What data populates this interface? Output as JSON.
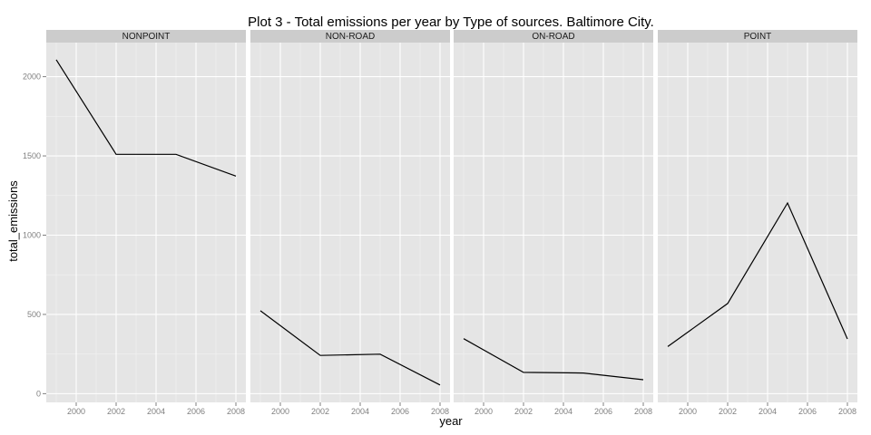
{
  "chart_data": {
    "type": "line",
    "title": "Plot 3 - Total emissions per year by Type of sources. Baltimore City.",
    "xlabel": "year",
    "ylabel": "total_emissions",
    "xlim": [
      1998.5,
      2008.5
    ],
    "ylim": [
      -55,
      2215
    ],
    "x_ticks": [
      2000,
      2002,
      2004,
      2006,
      2008
    ],
    "y_ticks": [
      0,
      500,
      1000,
      1500,
      2000
    ],
    "grid": true,
    "panels": [
      {
        "name": "NONPOINT",
        "x": [
          1999,
          2002,
          2005,
          2008
        ],
        "y": [
          2107,
          1510,
          1510,
          1373
        ]
      },
      {
        "name": "NON-ROAD",
        "x": [
          1999,
          2002,
          2005,
          2008
        ],
        "y": [
          523,
          241,
          249,
          55
        ]
      },
      {
        "name": "ON-ROAD",
        "x": [
          1999,
          2002,
          2005,
          2008
        ],
        "y": [
          347,
          134,
          130,
          88
        ]
      },
      {
        "name": "POINT",
        "x": [
          1999,
          2002,
          2005,
          2008
        ],
        "y": [
          297,
          569,
          1203,
          345
        ]
      }
    ]
  },
  "colors": {
    "panel_background": "#e5e5e5",
    "strip_background": "#cccccc",
    "grid_major": "#ffffff",
    "grid_minor": "#f2f2f2",
    "line": "#000000"
  }
}
